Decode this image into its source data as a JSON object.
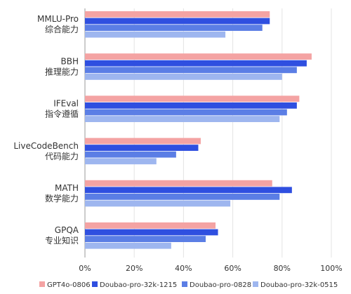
{
  "chart_data": {
    "type": "bar",
    "orientation": "horizontal",
    "categories": [
      [
        "MMLU-Pro",
        "综合能力"
      ],
      [
        "BBH",
        "推理能力"
      ],
      [
        "IFEval",
        "指令遵循"
      ],
      [
        "LiveCodeBench",
        "代码能力"
      ],
      [
        "MATH",
        "数学能力"
      ],
      [
        "GPQA",
        "专业知识"
      ]
    ],
    "series": [
      {
        "name": "GPT4o-0806",
        "color": "#f4a3a3",
        "values": [
          75,
          92,
          87,
          47,
          76,
          53
        ]
      },
      {
        "name": "Doubao-pro-32k-1215",
        "color": "#2f4fe0",
        "values": [
          75,
          90,
          86,
          46,
          84,
          54
        ]
      },
      {
        "name": "Doubao-pro-0828",
        "color": "#5b7ee5",
        "values": [
          72,
          86,
          82,
          37,
          79,
          49
        ]
      },
      {
        "name": "Doubao-pro-32k-0515",
        "color": "#9eb6ef",
        "values": [
          57,
          80,
          79,
          29,
          59,
          35
        ]
      }
    ],
    "xlim": [
      0,
      100
    ],
    "xticks": [
      {
        "value": 0,
        "label": "0%"
      },
      {
        "value": 20,
        "label": "20%"
      },
      {
        "value": 40,
        "label": "40%"
      },
      {
        "value": 60,
        "label": "60%"
      },
      {
        "value": 80,
        "label": "80%"
      },
      {
        "value": 100,
        "label": "100%"
      }
    ],
    "grid": true,
    "legend_position": "bottom",
    "title": "",
    "xlabel": "",
    "ylabel": ""
  }
}
